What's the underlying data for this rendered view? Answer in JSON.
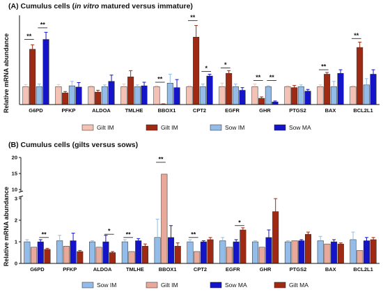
{
  "chart_data": [
    {
      "type": "bar",
      "title_prefix": "(A) Cumulus cells (",
      "title_italic": "in vitro",
      "title_suffix": " matured versus immature)",
      "ylabel": "Relative mRNA abundance",
      "xlabel": "",
      "ylim": [
        0,
        5
      ],
      "yticks": [],
      "grid": false,
      "legend_position": "bottom",
      "categories": [
        "G6PD",
        "PFKP",
        "ALDOA",
        "TMLHE",
        "BBOX1",
        "CPT2",
        "EGFR",
        "GHR",
        "PTGS2",
        "BAX",
        "BCL2L1"
      ],
      "series": [
        {
          "name": "Gilt IM",
          "color": "#f3c2b5",
          "values": [
            1.0,
            1.0,
            1.0,
            1.0,
            1.0,
            1.0,
            1.0,
            1.0,
            1.0,
            1.0,
            1.0
          ],
          "errors": [
            0.12,
            0.12,
            0.05,
            0.15,
            0.05,
            0.05,
            0.2,
            0.15,
            0.05,
            0.1,
            0.05
          ]
        },
        {
          "name": "Gilt IM",
          "color": "#9e2a13",
          "values": [
            3.1,
            0.65,
            0.7,
            1.55,
            0.02,
            3.78,
            1.75,
            0.35,
            0.95,
            1.7,
            3.2
          ],
          "errors": [
            0.25,
            0.08,
            0.1,
            0.35,
            0.02,
            0.65,
            0.15,
            0.08,
            0.12,
            0.1,
            0.3
          ]
        },
        {
          "name": "Sow IM",
          "color": "#93bde8",
          "values": [
            1.0,
            1.05,
            1.0,
            1.0,
            1.2,
            1.0,
            1.0,
            1.0,
            1.0,
            1.0,
            1.1
          ],
          "errors": [
            0.15,
            0.25,
            0.1,
            0.1,
            0.5,
            0.15,
            0.15,
            0.05,
            0.1,
            0.3,
            0.35
          ]
        },
        {
          "name": "Sow MA",
          "color": "#1414c8",
          "values": [
            3.65,
            0.98,
            1.3,
            1.05,
            0.95,
            1.6,
            0.8,
            0.15,
            0.75,
            1.75,
            1.7
          ],
          "errors": [
            0.4,
            0.25,
            0.35,
            0.2,
            0.45,
            0.1,
            0.15,
            0.05,
            0.1,
            0.2,
            0.25
          ]
        }
      ],
      "significance": [
        {
          "category": "G6PD",
          "from": 0,
          "to": 1,
          "label": "**",
          "y": 3.65
        },
        {
          "category": "G6PD",
          "from": 2,
          "to": 3,
          "label": "**",
          "y": 4.3
        },
        {
          "category": "BBOX1",
          "from": 0,
          "to": 1,
          "label": "**",
          "y": 1.25
        },
        {
          "category": "CPT2",
          "from": 0,
          "to": 1,
          "label": "**",
          "y": 4.7
        },
        {
          "category": "CPT2",
          "from": 2,
          "to": 3,
          "label": "*",
          "y": 1.85
        },
        {
          "category": "EGFR",
          "from": 0,
          "to": 1,
          "label": "*",
          "y": 2.05
        },
        {
          "category": "GHR",
          "from": 0,
          "to": 1,
          "label": "**",
          "y": 1.35
        },
        {
          "category": "GHR",
          "from": 2,
          "to": 3,
          "label": "**",
          "y": 1.35
        },
        {
          "category": "BAX",
          "from": 0,
          "to": 1,
          "label": "**",
          "y": 1.95
        },
        {
          "category": "BCL2L1",
          "from": 0,
          "to": 1,
          "label": "**",
          "y": 3.7
        }
      ]
    },
    {
      "type": "bar",
      "title": "(B) Cumulus cells (gilts versus sows)",
      "ylabel": "Relative mRNA abundance",
      "xlabel": "",
      "ylim": [
        0,
        20
      ],
      "axis_break": {
        "lower_max": 3,
        "upper_min": 10,
        "upper_max": 20
      },
      "yticks": [
        "0",
        "1",
        "2",
        "3",
        "10",
        "15",
        "20"
      ],
      "grid": false,
      "legend_position": "bottom",
      "categories": [
        "G6PD",
        "PFKP",
        "ALDOA",
        "TMLHE",
        "BBOX1",
        "CPT2",
        "EGFR",
        "GHR",
        "PTGS2",
        "BAX",
        "BCL2L1"
      ],
      "series": [
        {
          "name": "Sow IM",
          "color": "#93bde8",
          "values": [
            1.0,
            1.05,
            1.0,
            1.0,
            1.2,
            1.0,
            1.05,
            1.0,
            1.0,
            1.05,
            1.1
          ],
          "errors": [
            0.1,
            0.25,
            0.05,
            0.1,
            0.85,
            0.1,
            0.15,
            0.05,
            0.05,
            0.2,
            0.35
          ]
        },
        {
          "name": "Gilt IM",
          "color": "#e8a89a",
          "values": [
            0.75,
            0.8,
            0.75,
            0.55,
            14.8,
            0.55,
            0.75,
            0.75,
            1.05,
            0.9,
            0.6
          ]
        },
        {
          "name": "Sow MA",
          "color": "#1414c8",
          "values": [
            1.0,
            1.05,
            1.0,
            1.05,
            1.2,
            1.0,
            1.0,
            1.2,
            1.05,
            1.0,
            1.05
          ],
          "errors": [
            0.1,
            0.35,
            0.3,
            0.1,
            0.55,
            0.05,
            0.1,
            0.35,
            0.05,
            0.1,
            0.15
          ]
        },
        {
          "name": "Gilt MA",
          "color": "#9e2a13",
          "values": [
            0.65,
            0.55,
            0.5,
            0.8,
            0.8,
            1.1,
            1.55,
            2.4,
            1.35,
            0.9,
            1.1
          ],
          "errors": [
            0.05,
            0.05,
            0.05,
            0.1,
            0.15,
            0.1,
            0.1,
            0.6,
            0.1,
            0.05,
            0.1
          ]
        }
      ],
      "significance": [
        {
          "category": "G6PD",
          "from": 2,
          "to": 3,
          "label": "**",
          "y": 1.2
        },
        {
          "category": "ALDOA",
          "from": 2,
          "to": 3,
          "label": "*",
          "y": 1.35
        },
        {
          "category": "TMLHE",
          "from": 0,
          "to": 1,
          "label": "**",
          "y": 1.2
        },
        {
          "category": "BBOX1",
          "from": 0,
          "to": 1,
          "label": "**",
          "y": 18.5
        },
        {
          "category": "CPT2",
          "from": 0,
          "to": 1,
          "label": "**",
          "y": 1.2
        },
        {
          "category": "EGFR",
          "from": 2,
          "to": 3,
          "label": "*",
          "y": 1.75
        }
      ]
    }
  ]
}
